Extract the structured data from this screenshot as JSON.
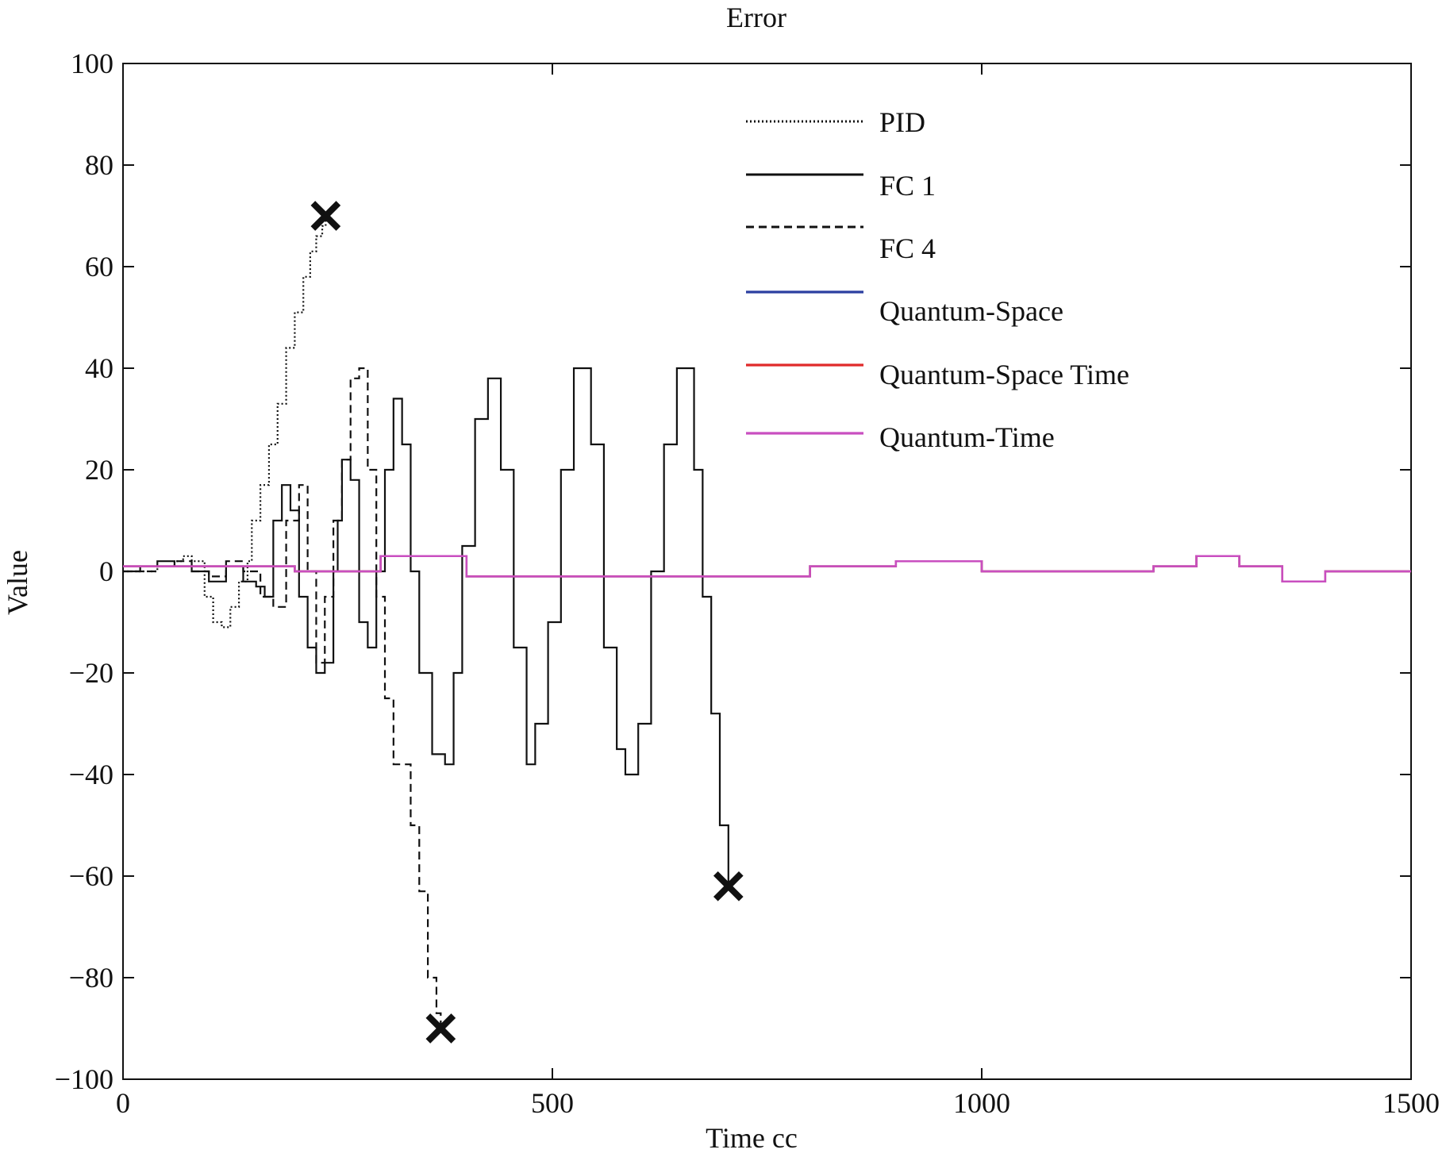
{
  "chart_data": {
    "type": "line",
    "title": "Error",
    "xlabel": "Time cc",
    "ylabel": "Value",
    "xlim": [
      0,
      1500
    ],
    "ylim": [
      -100,
      100
    ],
    "x_ticks": [
      0,
      500,
      1000,
      1500
    ],
    "y_ticks": [
      100,
      80,
      60,
      40,
      20,
      0,
      -20,
      -40,
      -60,
      -80,
      -100
    ],
    "x_tick_labels": [
      "0",
      "500",
      "1000",
      "1500"
    ],
    "y_tick_labels": [
      "100",
      "80",
      "60",
      "40",
      "20",
      "0",
      "−20",
      "−40",
      "−60",
      "−80",
      "−100"
    ],
    "grid": false,
    "legend_position": "top-right",
    "series": [
      {
        "name": "PID",
        "color": "#111111",
        "style": "dotted",
        "x": [
          0,
          20,
          40,
          60,
          70,
          80,
          95,
          105,
          115,
          125,
          135,
          145,
          150,
          160,
          170,
          180,
          190,
          200,
          210,
          218,
          225,
          232,
          236
        ],
        "y": [
          0,
          0,
          1,
          2,
          3,
          2,
          -5,
          -10,
          -11,
          -7,
          -2,
          2,
          10,
          17,
          25,
          33,
          44,
          51,
          58,
          63,
          66,
          68,
          70
        ],
        "end_marker": "x"
      },
      {
        "name": "FC 1",
        "color": "#111111",
        "style": "solid",
        "x": [
          0,
          20,
          40,
          60,
          80,
          100,
          120,
          140,
          155,
          165,
          175,
          185,
          195,
          205,
          215,
          225,
          235,
          245,
          250,
          255,
          265,
          275,
          285,
          295,
          305,
          315,
          325,
          335,
          345,
          360,
          375,
          385,
          395,
          410,
          425,
          440,
          455,
          470,
          480,
          495,
          510,
          525,
          535,
          545,
          560,
          575,
          585,
          600,
          615,
          630,
          645,
          655,
          665,
          675,
          685,
          695,
          705
        ],
        "y": [
          0,
          1,
          2,
          1,
          0,
          -2,
          1,
          -2,
          -3,
          -5,
          10,
          17,
          12,
          -5,
          -15,
          -20,
          -18,
          0,
          10,
          22,
          18,
          -10,
          -15,
          0,
          20,
          34,
          25,
          0,
          -20,
          -36,
          -38,
          -20,
          5,
          30,
          38,
          20,
          -15,
          -38,
          -30,
          -10,
          20,
          40,
          40,
          25,
          -15,
          -35,
          -40,
          -30,
          0,
          25,
          40,
          40,
          20,
          -5,
          -28,
          -50,
          -62
        ],
        "end_marker": "x"
      },
      {
        "name": "FC 4",
        "color": "#111111",
        "style": "dashed",
        "x": [
          0,
          20,
          40,
          60,
          80,
          100,
          120,
          140,
          160,
          175,
          190,
          205,
          215,
          225,
          235,
          245,
          255,
          265,
          275,
          285,
          295,
          305,
          315,
          325,
          335,
          345,
          355,
          365,
          370
        ],
        "y": [
          0,
          0,
          1,
          2,
          0,
          -1,
          2,
          0,
          -5,
          -7,
          10,
          17,
          0,
          -18,
          -5,
          10,
          22,
          38,
          40,
          20,
          -5,
          -25,
          -38,
          -38,
          -50,
          -63,
          -80,
          -87,
          -90
        ],
        "end_marker": "x"
      },
      {
        "name": "Quantum-Space",
        "color": "#2b3fa0",
        "style": "solid",
        "x": [
          0,
          100,
          200,
          300,
          400,
          500,
          600,
          700,
          800,
          900,
          1000,
          1100,
          1200,
          1250,
          1300,
          1350,
          1400,
          1500
        ],
        "y": [
          1,
          1,
          0,
          3,
          -1,
          -1,
          -1,
          -1,
          1,
          2,
          0,
          0,
          1,
          3,
          1,
          -2,
          0,
          0
        ]
      },
      {
        "name": "Quantum-Space Time",
        "color": "#e02a2a",
        "style": "solid",
        "x": [
          0,
          100,
          200,
          300,
          400,
          500,
          600,
          700,
          800,
          900,
          1000,
          1100,
          1200,
          1250,
          1300,
          1350,
          1400,
          1500
        ],
        "y": [
          1,
          1,
          0,
          3,
          -1,
          -1,
          -1,
          -1,
          1,
          2,
          0,
          0,
          1,
          3,
          1,
          -2,
          0,
          0
        ]
      },
      {
        "name": "Quantum-Time",
        "color": "#c94fc0",
        "style": "solid",
        "x": [
          0,
          100,
          200,
          300,
          400,
          500,
          600,
          700,
          800,
          900,
          1000,
          1100,
          1200,
          1250,
          1300,
          1350,
          1400,
          1500
        ],
        "y": [
          1,
          1,
          0,
          3,
          -1,
          -1,
          -1,
          -1,
          1,
          2,
          0,
          0,
          1,
          3,
          1,
          -2,
          0,
          0
        ]
      }
    ]
  }
}
